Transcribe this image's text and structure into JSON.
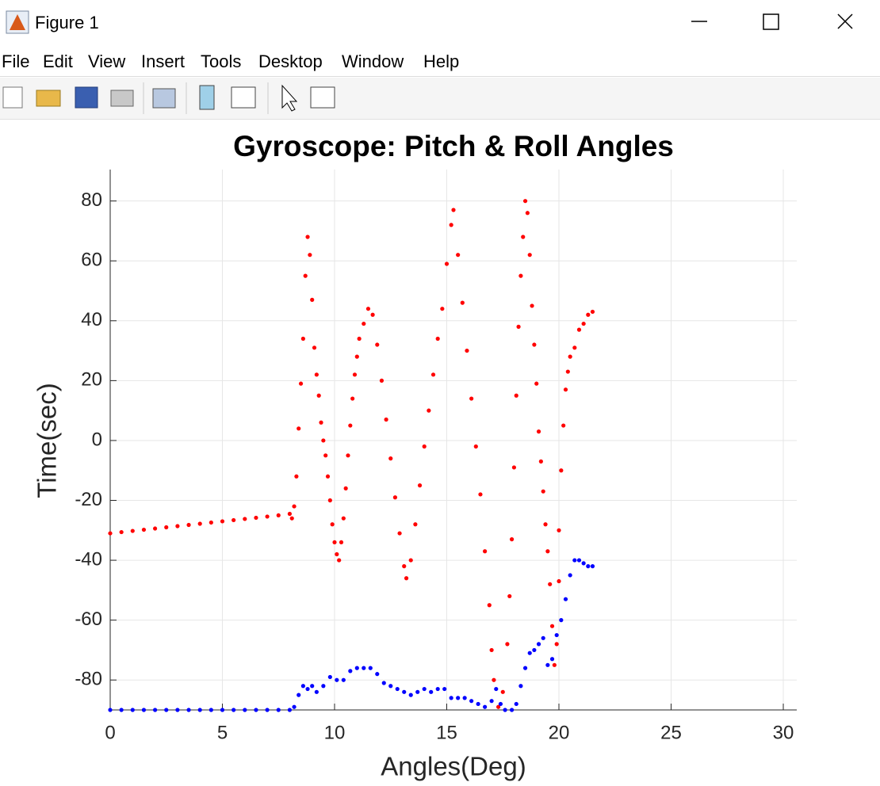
{
  "window": {
    "title": "Figure 1",
    "menu": [
      "File",
      "Edit",
      "View",
      "Insert",
      "Tools",
      "Desktop",
      "Window",
      "Help"
    ]
  },
  "chart_data": {
    "type": "scatter",
    "title": "Gyroscope: Pitch & Roll Angles",
    "x_label": "Angles(Deg)",
    "y_label": "Time(sec)",
    "xlim": [
      0,
      30.6
    ],
    "ylim": [
      -90,
      90.5
    ],
    "xticks": [
      0,
      5,
      10,
      15,
      20,
      25,
      30
    ],
    "yticks": [
      -80,
      -60,
      -40,
      -20,
      0,
      20,
      40,
      60,
      80
    ],
    "grid": true,
    "series": [
      {
        "color": "#ff0000",
        "x": [
          0,
          0.5,
          1,
          1.5,
          2,
          2.5,
          3,
          3.5,
          4,
          4.5,
          5,
          5.5,
          6,
          6.5,
          7,
          7.5,
          8,
          8.1,
          8.2,
          8.3,
          8.4,
          8.5,
          8.6,
          8.7,
          8.8,
          8.9,
          9.0,
          9.1,
          9.2,
          9.3,
          9.4,
          9.5,
          9.6,
          9.7,
          9.8,
          9.9,
          10.0,
          10.1,
          10.2,
          10.3,
          10.4,
          10.5,
          10.6,
          10.7,
          10.8,
          10.9,
          11.0,
          11.1,
          11.3,
          11.5,
          11.7,
          11.9,
          12.1,
          12.3,
          12.5,
          12.7,
          12.9,
          13.1,
          13.2,
          13.4,
          13.6,
          13.8,
          14.0,
          14.2,
          14.4,
          14.6,
          14.8,
          15.0,
          15.2,
          15.3,
          15.5,
          15.7,
          15.9,
          16.1,
          16.3,
          16.5,
          16.7,
          16.9,
          17.0,
          17.1,
          17.3,
          17.5,
          17.7,
          17.8,
          17.9,
          18.0,
          18.1,
          18.2,
          18.3,
          18.4,
          18.5,
          18.6,
          18.7,
          18.8,
          18.9,
          19.0,
          19.1,
          19.2,
          19.3,
          19.4,
          19.5,
          19.6,
          19.7,
          19.8,
          19.9,
          20.0,
          20.0,
          20.1,
          20.2,
          20.3,
          20.4,
          20.5,
          20.7,
          20.9,
          21.1,
          21.3,
          21.5
        ],
        "values": [
          -31,
          -30.6,
          -30.2,
          -29.8,
          -29.4,
          -29,
          -28.6,
          -28.2,
          -27.8,
          -27.4,
          -27,
          -26.6,
          -26.2,
          -25.8,
          -25.4,
          -25,
          -24.5,
          -26,
          -22,
          -12,
          4,
          19,
          34,
          55,
          68,
          62,
          47,
          31,
          22,
          15,
          6,
          0,
          -5,
          -12,
          -20,
          -28,
          -34,
          -38,
          -40,
          -34,
          -26,
          -16,
          -5,
          5,
          14,
          22,
          28,
          34,
          39,
          44,
          42,
          32,
          20,
          7,
          -6,
          -19,
          -31,
          -42,
          -46,
          -40,
          -28,
          -15,
          -2,
          10,
          22,
          34,
          44,
          59,
          72,
          77,
          62,
          46,
          30,
          14,
          -2,
          -18,
          -37,
          -55,
          -70,
          -80,
          -89,
          -84,
          -68,
          -52,
          -33,
          -9,
          15,
          38,
          55,
          68,
          80,
          76,
          62,
          45,
          32,
          19,
          3,
          -7,
          -17,
          -28,
          -37,
          -48,
          -62,
          -75,
          -68,
          -47,
          -30,
          -10,
          5,
          17,
          23,
          28,
          31,
          37,
          39,
          42,
          43
        ]
      },
      {
        "color": "#0000ff",
        "x": [
          0,
          0.5,
          1,
          1.5,
          2,
          2.5,
          3,
          3.5,
          4,
          4.5,
          5,
          5.5,
          6,
          6.5,
          7,
          7.5,
          8,
          8.2,
          8.4,
          8.6,
          8.8,
          9.0,
          9.2,
          9.5,
          9.8,
          10.1,
          10.4,
          10.7,
          11.0,
          11.3,
          11.6,
          11.9,
          12.2,
          12.5,
          12.8,
          13.1,
          13.4,
          13.7,
          14.0,
          14.3,
          14.6,
          14.9,
          15.2,
          15.5,
          15.8,
          16.1,
          16.4,
          16.7,
          17.0,
          17.2,
          17.4,
          17.6,
          17.9,
          18.1,
          18.3,
          18.5,
          18.7,
          18.9,
          19.1,
          19.3,
          19.5,
          19.7,
          19.9,
          20.1,
          20.3,
          20.5,
          20.7,
          20.9,
          21.1,
          21.3,
          21.5
        ],
        "values": [
          -90,
          -90,
          -90,
          -90,
          -90,
          -90,
          -90,
          -90,
          -90,
          -90,
          -90,
          -90,
          -90,
          -90,
          -90,
          -90,
          -90,
          -89,
          -85,
          -82,
          -83,
          -82,
          -84,
          -82,
          -79,
          -80,
          -80,
          -77,
          -76,
          -76,
          -76,
          -78,
          -81,
          -82,
          -83,
          -84,
          -85,
          -84,
          -83,
          -84,
          -83,
          -83,
          -86,
          -86,
          -86,
          -87,
          -88,
          -89,
          -87,
          -83,
          -88,
          -90,
          -90,
          -88,
          -82,
          -76,
          -71,
          -70,
          -68,
          -66,
          -75,
          -73,
          -65,
          -60,
          -53,
          -45,
          -40,
          -40,
          -41,
          -42,
          -42
        ]
      }
    ]
  }
}
